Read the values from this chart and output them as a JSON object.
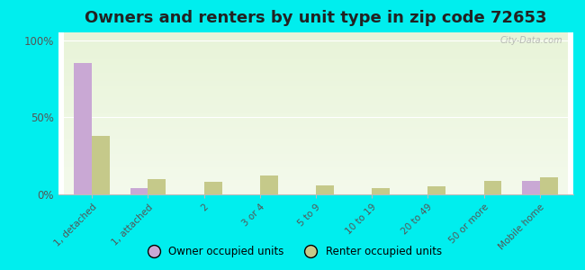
{
  "title": "Owners and renters by unit type in zip code 72653",
  "categories": [
    "1, detached",
    "1, attached",
    "2",
    "3 or 4",
    "5 to 9",
    "10 to 19",
    "20 to 49",
    "50 or more",
    "Mobile home"
  ],
  "owner_values": [
    85,
    4,
    0,
    0,
    0,
    0,
    0,
    0,
    9
  ],
  "renter_values": [
    38,
    10,
    8,
    12,
    6,
    4,
    5,
    9,
    11
  ],
  "owner_color": "#c9a8d4",
  "renter_color": "#c5c98a",
  "background_color": "#00eeee",
  "title_fontsize": 13,
  "ylabel_ticks": [
    "0%",
    "50%",
    "100%"
  ],
  "ytick_vals": [
    0,
    50,
    100
  ],
  "ylim": [
    0,
    105
  ],
  "legend_owner": "Owner occupied units",
  "legend_renter": "Renter occupied units",
  "watermark": "City-Data.com",
  "plot_grad_top": "#e8f4d8",
  "plot_grad_bottom": "#f4faec"
}
